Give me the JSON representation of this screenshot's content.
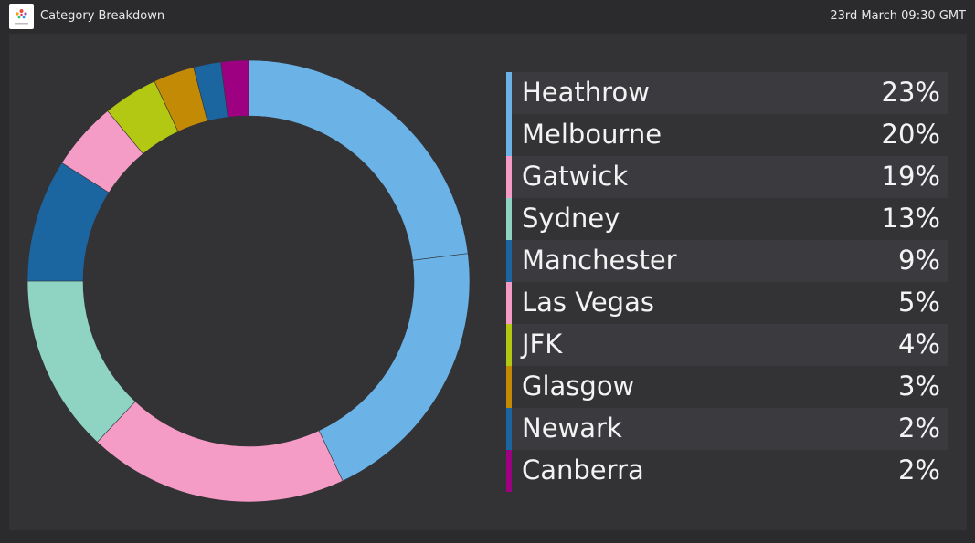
{
  "header": {
    "title": "Category Breakdown",
    "timestamp": "23rd March 09:30 GMT"
  },
  "chart_data": {
    "type": "pie",
    "variant": "donut",
    "legend_position": "right",
    "slices": [
      {
        "label": "Heathrow",
        "value": 23,
        "display": "23%",
        "color": "#6bb3e6"
      },
      {
        "label": "Melbourne",
        "value": 20,
        "display": "20%",
        "color": "#6bb3e6"
      },
      {
        "label": "Gatwick",
        "value": 19,
        "display": "19%",
        "color": "#f59cc6"
      },
      {
        "label": "Sydney",
        "value": 13,
        "display": "13%",
        "color": "#8fd3c3"
      },
      {
        "label": "Manchester",
        "value": 9,
        "display": "9%",
        "color": "#1b65a0"
      },
      {
        "label": "Las Vegas",
        "value": 5,
        "display": "5%",
        "color": "#f59cc6"
      },
      {
        "label": "JFK",
        "value": 4,
        "display": "4%",
        "color": "#b3c812"
      },
      {
        "label": "Glasgow",
        "value": 3,
        "display": "3%",
        "color": "#c38a05"
      },
      {
        "label": "Newark",
        "value": 2,
        "display": "2%",
        "color": "#1b65a0"
      },
      {
        "label": "Canberra",
        "value": 2,
        "display": "2%",
        "color": "#9e0082"
      }
    ]
  }
}
